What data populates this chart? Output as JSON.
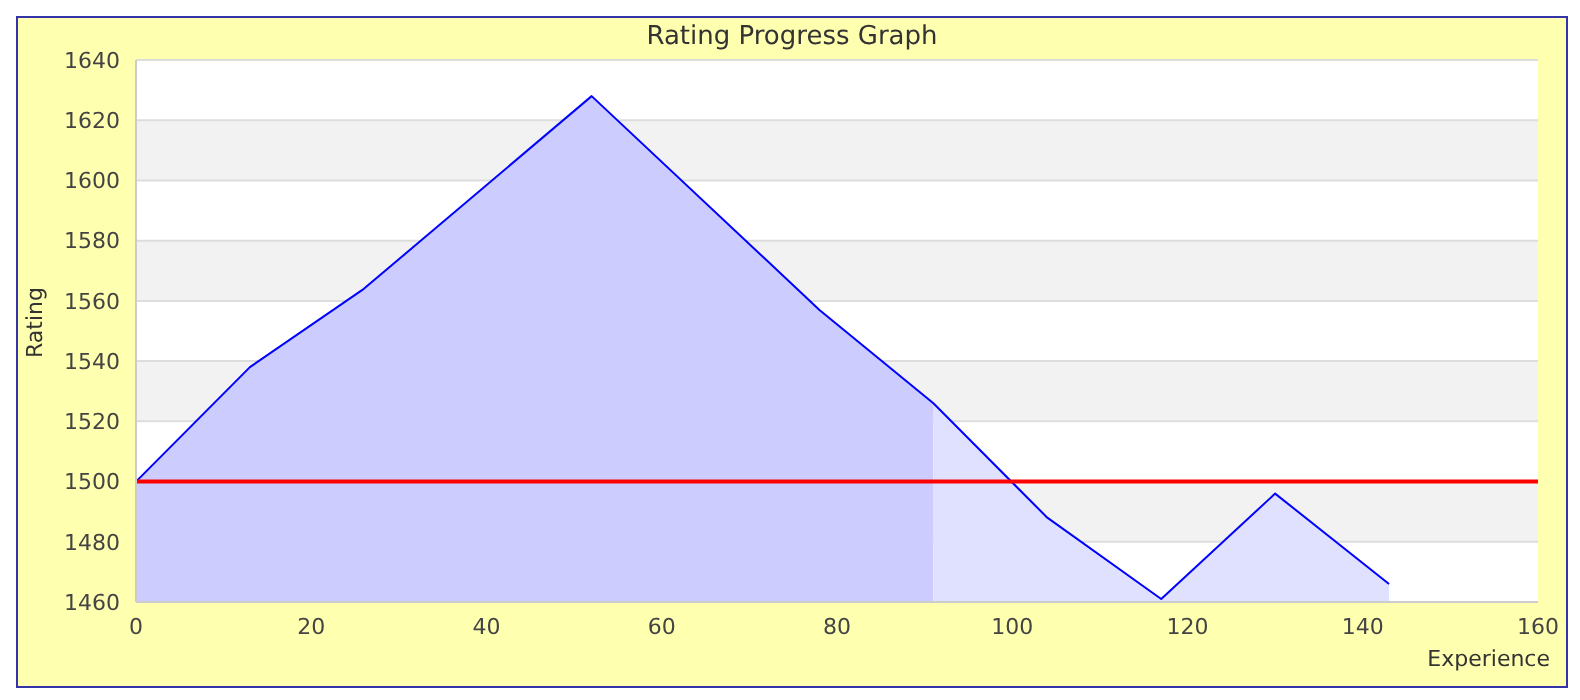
{
  "chart_data": {
    "type": "area",
    "title": "Rating Progress Graph",
    "xlabel": "Experience",
    "ylabel": "Rating",
    "series": [
      {
        "x": [
          0,
          13,
          26,
          52,
          78,
          91
        ],
        "values": [
          1500,
          1538,
          1564,
          1628,
          1557,
          1526
        ],
        "color": "#ccccff"
      },
      {
        "x": [
          91,
          104,
          117,
          130,
          143
        ],
        "values": [
          1526,
          1488,
          1461,
          1496,
          1466
        ],
        "color": "#e0e0ff"
      },
      {
        "type": "line",
        "x": [
          0,
          13,
          26,
          52,
          78,
          91,
          104,
          117,
          130,
          143
        ],
        "values": [
          1500,
          1538,
          1564,
          1628,
          1557,
          1526,
          1488,
          1461,
          1496,
          1466
        ],
        "color": "#0000ff"
      }
    ],
    "xlim": [
      0,
      160
    ],
    "xticks": [
      0,
      20,
      40,
      60,
      80,
      100,
      120,
      140,
      160
    ],
    "ylim": [
      1460,
      1640
    ],
    "yticks": [
      1460,
      1480,
      1500,
      1520,
      1540,
      1560,
      1580,
      1600,
      1620,
      1640
    ],
    "ref_lines": [
      {
        "axis": "y",
        "value": 1500,
        "color": "#ff0000"
      }
    ],
    "grid": "y",
    "legend": false
  }
}
